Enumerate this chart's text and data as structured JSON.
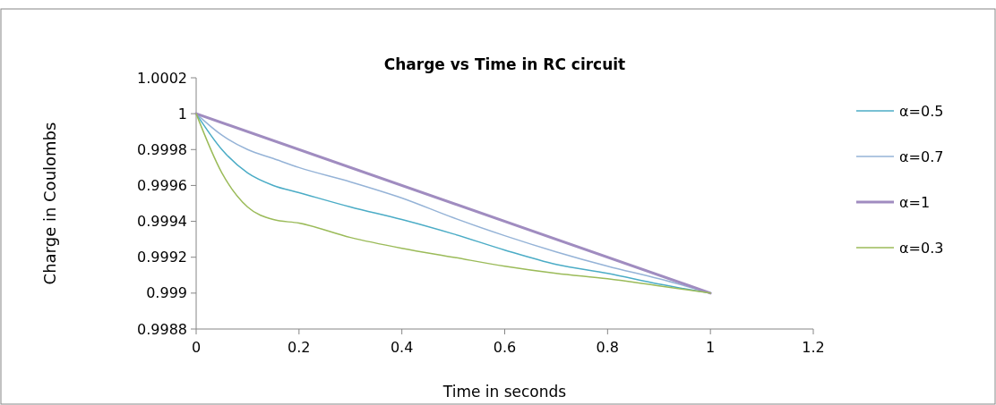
{
  "chart_data": {
    "type": "line",
    "title": "Charge vs Time in RC circuit",
    "xlabel": "Time in seconds",
    "ylabel": "Charge in Coulombs",
    "xlim": [
      0,
      1.2
    ],
    "xticks": [
      0,
      0.2,
      0.4,
      0.6,
      0.8,
      1,
      1.2
    ],
    "ylim": [
      0.9988,
      1.0002
    ],
    "yticks": [
      0.9988,
      0.999,
      0.9992,
      0.9994,
      0.9996,
      0.9998,
      1,
      1.0002
    ],
    "grid": false,
    "legend": "right",
    "marker": "none",
    "line_style": "solid",
    "series": [
      {
        "name": "α=0.5",
        "color": "#4bacc6",
        "x": [
          0,
          0.05,
          0.1,
          0.15,
          0.2,
          0.3,
          0.4,
          0.5,
          0.6,
          0.7,
          0.8,
          0.9,
          1
        ],
        "values": [
          1,
          0.9998,
          0.99967,
          0.9996,
          0.99956,
          0.99948,
          0.99941,
          0.99933,
          0.99924,
          0.99916,
          0.99911,
          0.99905,
          0.999
        ]
      },
      {
        "name": "α=0.7",
        "color": "#95b3d7",
        "x": [
          0,
          0.05,
          0.1,
          0.15,
          0.2,
          0.3,
          0.4,
          0.5,
          0.6,
          0.7,
          0.8,
          0.9,
          1
        ],
        "values": [
          1,
          0.99988,
          0.9998,
          0.99975,
          0.9997,
          0.99962,
          0.99953,
          0.99942,
          0.99932,
          0.99923,
          0.99915,
          0.99908,
          0.999
        ]
      },
      {
        "name": "α=1",
        "color": "#a08cc0",
        "x": [
          0,
          1
        ],
        "values": [
          1,
          0.999
        ]
      },
      {
        "name": "α=0.3",
        "color": "#9bbb59",
        "x": [
          0,
          0.05,
          0.1,
          0.15,
          0.2,
          0.3,
          0.4,
          0.5,
          0.6,
          0.7,
          0.8,
          0.9,
          1
        ],
        "values": [
          1,
          0.99967,
          0.99948,
          0.99941,
          0.99939,
          0.99931,
          0.99925,
          0.9992,
          0.99915,
          0.99911,
          0.99908,
          0.99904,
          0.999
        ]
      }
    ]
  }
}
